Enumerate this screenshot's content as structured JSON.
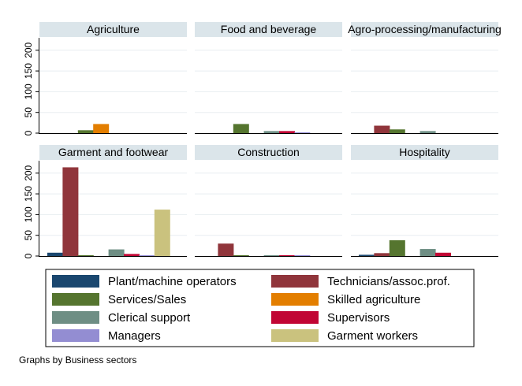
{
  "chart_data": {
    "type": "bar",
    "caption": "Graphs by Business sectors",
    "ylim": [
      0,
      230
    ],
    "yticks": [
      0,
      50,
      100,
      150,
      200
    ],
    "grid": true,
    "legend_position": "bottom",
    "series": [
      {
        "name": "Plant/machine operators",
        "color": "#1a476f"
      },
      {
        "name": "Technicians/assoc.prof.",
        "color": "#90353b"
      },
      {
        "name": "Services/Sales",
        "color": "#55752f"
      },
      {
        "name": "Skilled agriculture",
        "color": "#e37e00"
      },
      {
        "name": "Clerical support",
        "color": "#6e8e84"
      },
      {
        "name": "Supervisors",
        "color": "#c10534"
      },
      {
        "name": "Managers",
        "color": "#938dd2"
      },
      {
        "name": "Garment workers",
        "color": "#cac27e"
      }
    ],
    "panels": [
      {
        "title": "Agriculture",
        "values": [
          0,
          0,
          7,
          22,
          0,
          0,
          0,
          0
        ]
      },
      {
        "title": "Food and beverage",
        "values": [
          0,
          0,
          22,
          0,
          5,
          5,
          2,
          0
        ]
      },
      {
        "title": "Agro-processing/manufacturing",
        "values": [
          0,
          18,
          9,
          0,
          5,
          0,
          0,
          0
        ]
      },
      {
        "title": "Garment and footwear",
        "values": [
          8,
          214,
          2,
          0,
          16,
          5,
          2,
          112
        ]
      },
      {
        "title": "Construction",
        "values": [
          0,
          30,
          2,
          0,
          2,
          2,
          2,
          0
        ]
      },
      {
        "title": "Hospitality",
        "values": [
          3,
          7,
          38,
          0,
          17,
          8,
          0,
          0
        ]
      }
    ]
  }
}
